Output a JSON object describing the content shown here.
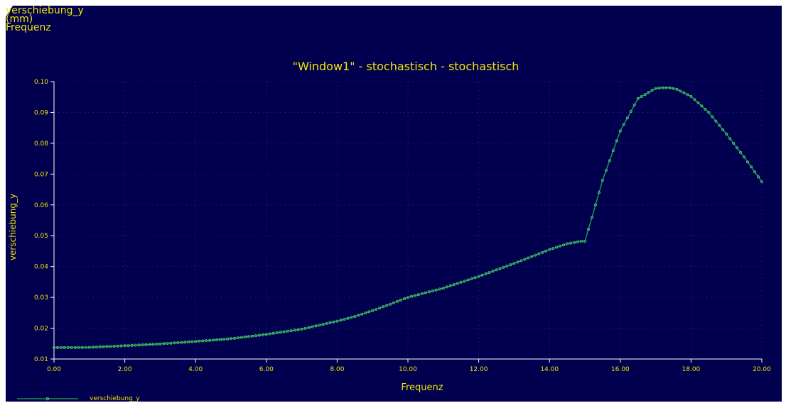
{
  "header": {
    "line1": "verschiebung_y",
    "line2": "(mm)",
    "line3": "Frequenz"
  },
  "colors": {
    "background": "#00004f",
    "text": "#f2e600",
    "axis": "#ffffff",
    "series": "#21a650",
    "marker": "#4cd26e",
    "grid": "#1a1a6a"
  },
  "chart_data": {
    "type": "line",
    "title": "\"Window1\" - stochastisch - stochastisch",
    "xlabel": "Frequenz",
    "ylabel": "verschiebung_y",
    "xlim": [
      0,
      20
    ],
    "ylim": [
      0.01,
      0.1
    ],
    "x_ticks": [
      "0.00",
      "2.00",
      "4.00",
      "6.00",
      "8.00",
      "10.00",
      "12.00",
      "14.00",
      "16.00",
      "18.00",
      "20.00"
    ],
    "y_ticks": [
      "0.01",
      "0.02",
      "0.03",
      "0.04",
      "0.05",
      "0.06",
      "0.07",
      "0.08",
      "0.09",
      "0.10"
    ],
    "grid": true,
    "legend": "bottom-left",
    "series": [
      {
        "name": "verschiebung_y",
        "x": [
          0,
          1,
          2,
          3,
          4,
          5,
          6,
          7,
          8,
          8.5,
          9,
          9.5,
          10,
          11,
          12,
          13,
          14,
          14.5,
          14.9,
          15.0,
          15.2,
          15.5,
          16,
          16.5,
          17,
          17.2,
          17.4,
          17.6,
          18,
          18.5,
          19,
          19.5,
          20
        ],
        "y": [
          0.0137,
          0.0138,
          0.0143,
          0.0149,
          0.0157,
          0.0166,
          0.018,
          0.0197,
          0.0223,
          0.0238,
          0.0257,
          0.0278,
          0.03,
          0.033,
          0.0368,
          0.041,
          0.0455,
          0.0474,
          0.0482,
          0.0482,
          0.056,
          0.068,
          0.084,
          0.0945,
          0.0978,
          0.098,
          0.098,
          0.0975,
          0.0952,
          0.09,
          0.083,
          0.0755,
          0.0675
        ]
      }
    ]
  }
}
